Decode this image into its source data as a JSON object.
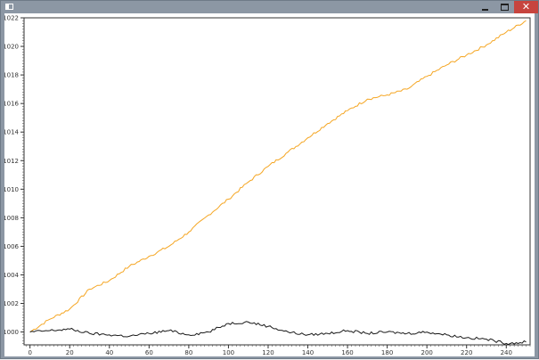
{
  "window": {
    "title": "",
    "icons": {
      "app": "window-app-icon",
      "minimize": "minimize-icon",
      "maximize": "maximize-icon",
      "close": "close-icon"
    },
    "colors": {
      "frame": "#8c97a4",
      "close": "#c7443e",
      "client": "#ffffff"
    }
  },
  "chart_data": {
    "type": "line",
    "title": "",
    "xlabel": "",
    "ylabel": "",
    "xlim": [
      -3,
      252
    ],
    "ylim": [
      999.1,
      1022
    ],
    "x_ticks": [
      0,
      20,
      40,
      60,
      80,
      100,
      120,
      140,
      160,
      180,
      200,
      220,
      240
    ],
    "y_ticks": [
      1000,
      1002,
      1004,
      1006,
      1008,
      1010,
      1012,
      1014,
      1016,
      1018,
      1020,
      1022
    ],
    "x_tick_labels": [
      "0",
      "20",
      "40",
      "60",
      "80",
      "100",
      "120",
      "140",
      "160",
      "180",
      "200",
      "220",
      "240"
    ],
    "y_tick_labels": [
      "1000",
      "1002",
      "1004",
      "1006",
      "1008",
      "1010",
      "1012",
      "1014",
      "1016",
      "1018",
      "1020",
      "1022"
    ],
    "grid": false,
    "legend": "none",
    "series": [
      {
        "color": "#f5a623",
        "x": [
          0,
          10,
          20,
          30,
          40,
          50,
          60,
          70,
          80,
          90,
          100,
          110,
          120,
          130,
          140,
          150,
          160,
          170,
          180,
          190,
          200,
          210,
          220,
          230,
          240,
          250
        ],
        "values": [
          1000.0,
          1000.9,
          1001.6,
          1003.0,
          1003.6,
          1004.6,
          1005.3,
          1006.0,
          1007.0,
          1008.2,
          1009.3,
          1010.5,
          1011.6,
          1012.6,
          1013.6,
          1014.6,
          1015.5,
          1016.3,
          1016.6,
          1017.0,
          1017.9,
          1018.7,
          1019.4,
          1020.1,
          1021.0,
          1021.8
        ]
      },
      {
        "color": "#1a1a1a",
        "x": [
          0,
          10,
          20,
          30,
          40,
          50,
          60,
          70,
          80,
          90,
          100,
          110,
          120,
          130,
          140,
          150,
          160,
          170,
          180,
          190,
          200,
          210,
          220,
          230,
          240,
          250
        ],
        "values": [
          1000.0,
          1000.1,
          1000.2,
          999.9,
          999.8,
          999.7,
          999.9,
          1000.1,
          999.8,
          1000.0,
          1000.6,
          1000.7,
          1000.4,
          1000.0,
          999.8,
          999.9,
          1000.1,
          999.9,
          1000.0,
          999.9,
          1000.0,
          999.8,
          999.6,
          999.5,
          999.2,
          999.3
        ]
      }
    ]
  }
}
